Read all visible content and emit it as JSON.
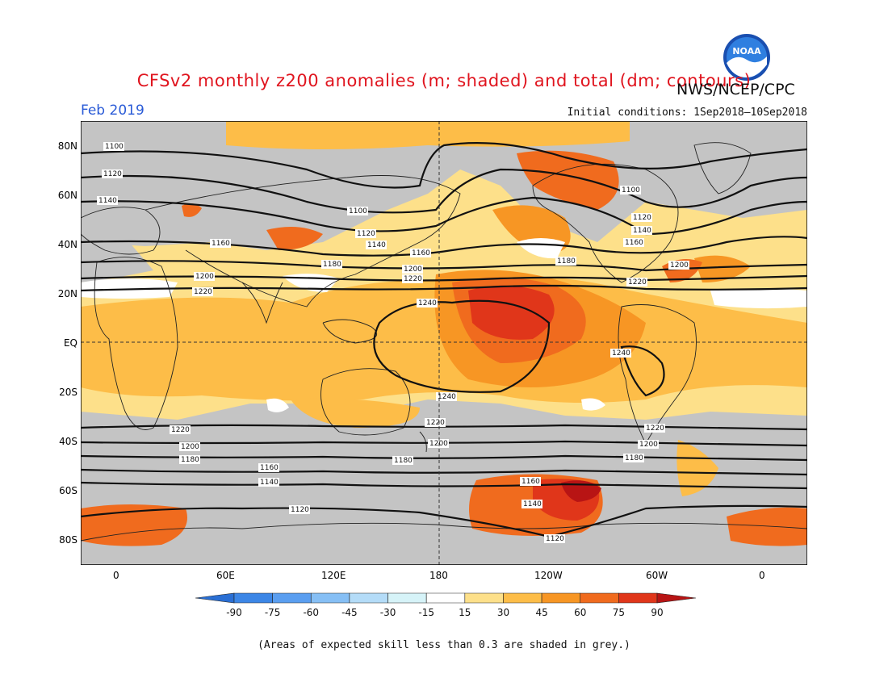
{
  "title": "CFSv2 monthly z200 anomalies (m; shaded) and total (dm; contours)",
  "agency": "NWS/NCEP/CPC",
  "logo_text": "NOAA",
  "valid_month": "Feb 2019",
  "initial_conditions": "Initial conditions: 1Sep2018–10Sep2018",
  "footnote": "(Areas of expected skill less than 0.3 are shaded in grey.)",
  "lat_labels": [
    "80N",
    "60N",
    "40N",
    "20N",
    "EQ",
    "20S",
    "40S",
    "60S",
    "80S"
  ],
  "lon_labels": [
    "0",
    "60E",
    "120E",
    "180",
    "120W",
    "60W",
    "0"
  ],
  "contour_labels": [
    "1100",
    "1120",
    "1140",
    "1160",
    "1180",
    "1200",
    "1220",
    "1240"
  ],
  "colorbar": {
    "ticks": [
      "-90",
      "-75",
      "-60",
      "-45",
      "-30",
      "-15",
      "15",
      "30",
      "45",
      "60",
      "75",
      "90"
    ],
    "colors": [
      "#2a6fd4",
      "#3c86e6",
      "#5a9ef0",
      "#86bff5",
      "#b4dcf8",
      "#d6f3f8",
      "#ffffff",
      "#fde08a",
      "#fdbd48",
      "#f79624",
      "#f06b1e",
      "#e0361a",
      "#b81414"
    ]
  },
  "skill_mask_color": "#c4c4c4"
}
